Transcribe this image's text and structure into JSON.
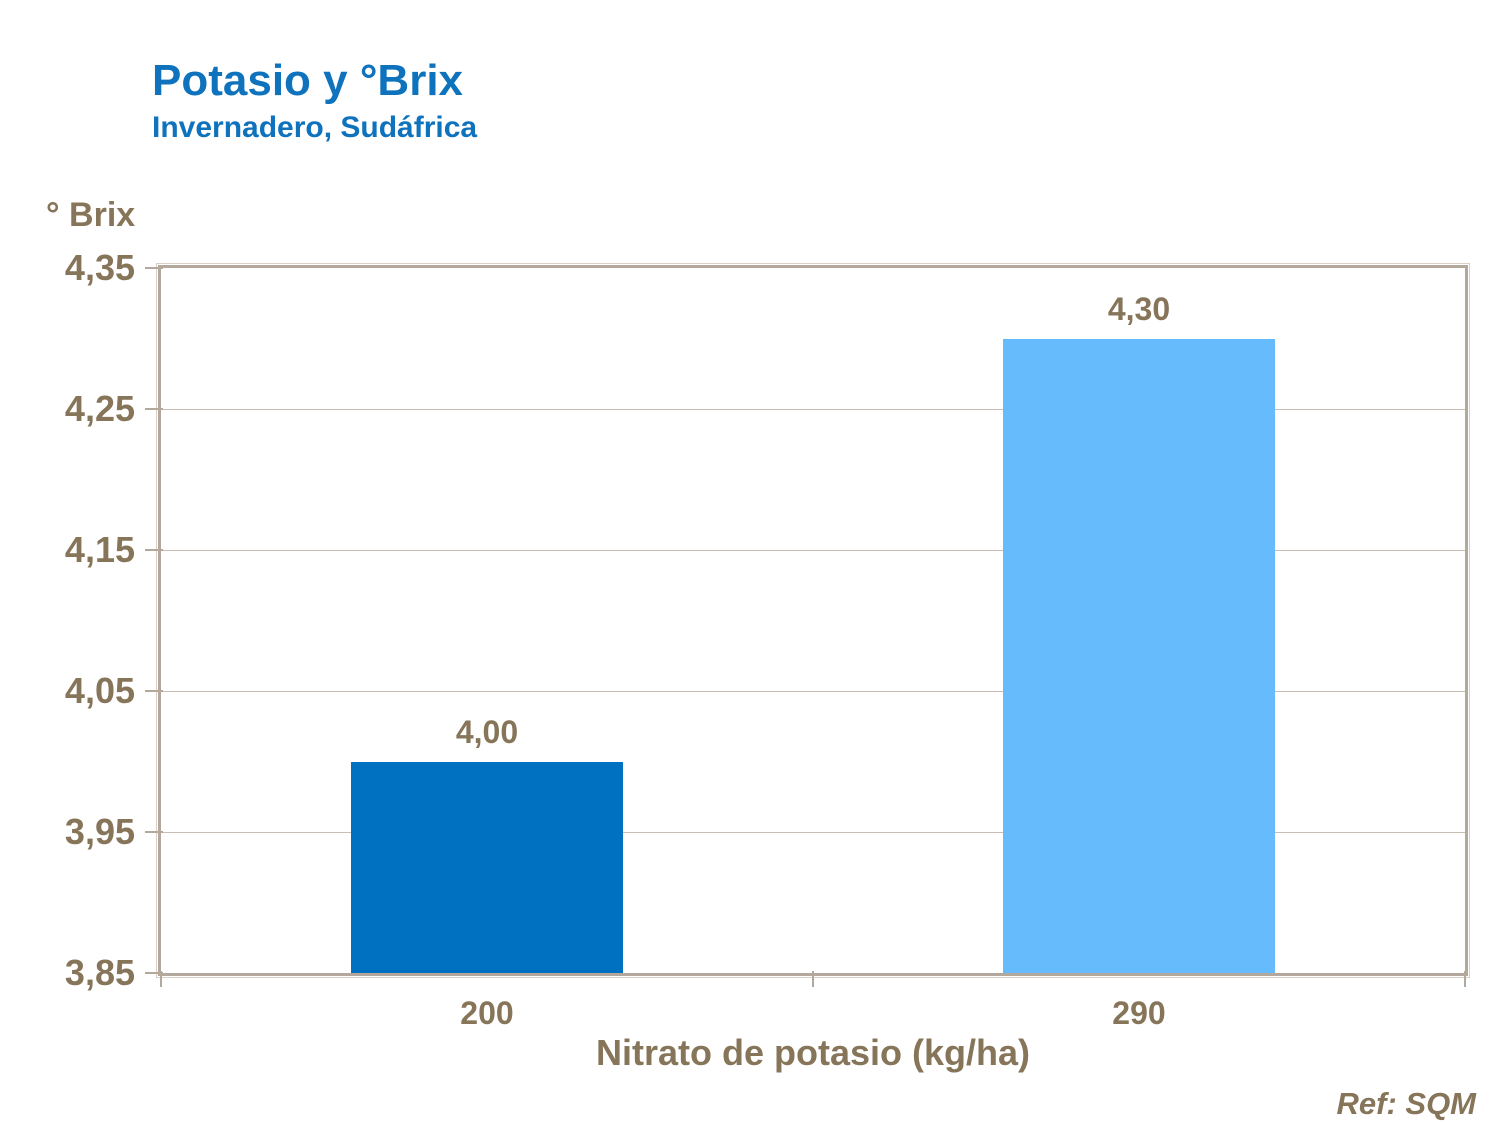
{
  "chart_data": {
    "type": "bar",
    "title": "Potasio y °Brix",
    "subtitle": "Invernadero, Sudáfrica",
    "y_axis_title": "° Brix",
    "x_axis_title": "Nitrato de potasio (kg/ha)",
    "categories": [
      "200",
      "290"
    ],
    "values": [
      4.0,
      4.3
    ],
    "value_labels": [
      "4,00",
      "4,30"
    ],
    "bar_colors": [
      "#0070C0",
      "#66BBFC"
    ],
    "ylim": [
      3.85,
      4.35
    ],
    "y_ticks": [
      3.85,
      3.95,
      4.05,
      4.15,
      4.25,
      4.35
    ],
    "y_tick_labels": [
      "3,85",
      "3,95",
      "4,05",
      "4,15",
      "4,25",
      "4,35"
    ],
    "grid": "horizontal",
    "legend": "none",
    "reference": "Ref: SQM",
    "colors": {
      "title": "#0E72BD",
      "axis_text": "#867559",
      "plot_border": "#B3A89C",
      "plot_border_highlight": "#D8D0C6",
      "gridline": "#C8BEB2"
    }
  }
}
